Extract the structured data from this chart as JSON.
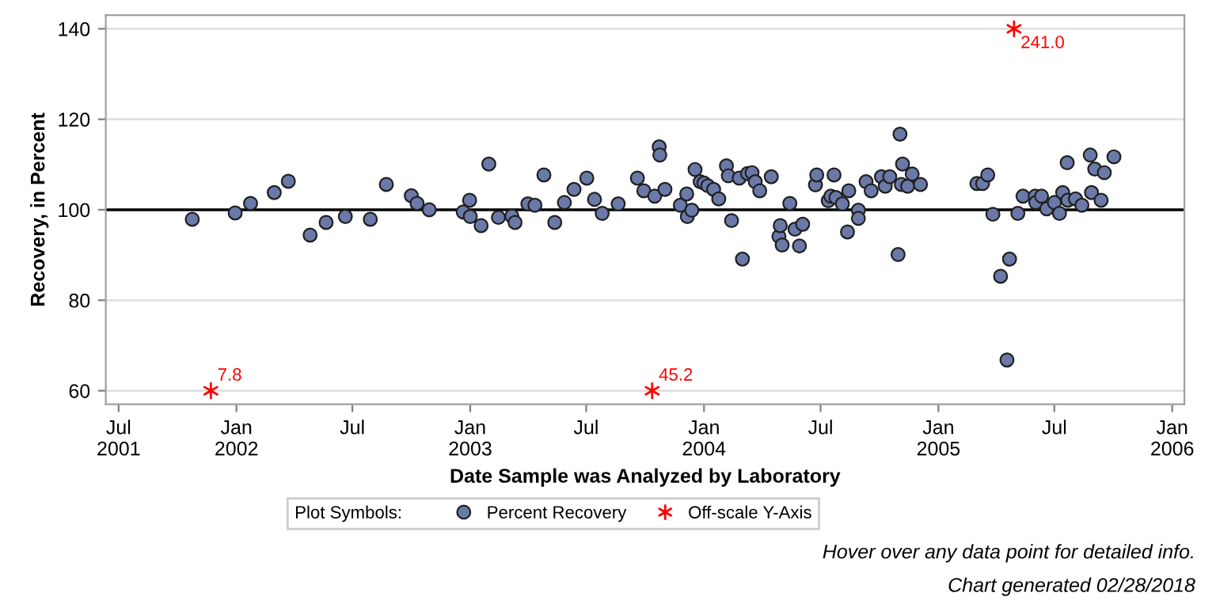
{
  "chart_data": {
    "type": "scatter",
    "xlabel": "Date Sample was Analyzed by Laboratory",
    "ylabel": "Recovery, in Percent",
    "xlim": [
      "2001-06-11",
      "2006-01-20"
    ],
    "ylim": [
      57,
      143
    ],
    "xticks": [
      {
        "value": "2001-07-01",
        "label": "Jul\n2001"
      },
      {
        "value": "2002-01-01",
        "label": "Jan\n2002"
      },
      {
        "value": "2002-07-01",
        "label": "Jul"
      },
      {
        "value": "2003-01-01",
        "label": "Jan\n2003"
      },
      {
        "value": "2003-07-01",
        "label": "Jul"
      },
      {
        "value": "2004-01-01",
        "label": "Jan\n2004"
      },
      {
        "value": "2004-07-01",
        "label": "Jul"
      },
      {
        "value": "2005-01-01",
        "label": "Jan\n2005"
      },
      {
        "value": "2005-07-01",
        "label": "Jul"
      },
      {
        "value": "2006-01-01",
        "label": "Jan\n2006"
      }
    ],
    "yticks": [
      60,
      80,
      100,
      120,
      140
    ],
    "grid": "y",
    "legend": "bottom",
    "legend_title": "Plot Symbols:",
    "ref_lines": [
      {
        "axis": "y",
        "value": 100,
        "color": "#000000"
      }
    ],
    "series": [
      {
        "name": "Percent Recovery",
        "color": "#6a79a8",
        "marker": "circle",
        "x": [
          "2001-10-24",
          "2001-12-30",
          "2002-01-23",
          "2002-03-01",
          "2002-03-23",
          "2002-04-26",
          "2002-05-21",
          "2002-06-20",
          "2002-07-29",
          "2002-08-23",
          "2002-10-01",
          "2002-10-10",
          "2002-10-29",
          "2002-12-21",
          "2002-12-31",
          "2003-01-01",
          "2003-01-18",
          "2003-01-30",
          "2003-02-14",
          "2003-03-07",
          "2003-03-12",
          "2003-04-01",
          "2003-04-12",
          "2003-04-26",
          "2003-05-13",
          "2003-05-28",
          "2003-06-12",
          "2003-07-02",
          "2003-07-14",
          "2003-07-26",
          "2003-08-20",
          "2003-09-19",
          "2003-09-29",
          "2003-10-16",
          "2003-10-23",
          "2003-10-24",
          "2003-11-01",
          "2003-11-25",
          "2003-12-05",
          "2003-12-06",
          "2003-12-13",
          "2003-12-18",
          "2003-12-26",
          "2004-01-01",
          "2004-01-07",
          "2004-01-16",
          "2004-01-24",
          "2004-02-05",
          "2004-02-08",
          "2004-02-13",
          "2004-02-25",
          "2004-03-01",
          "2004-03-09",
          "2004-03-16",
          "2004-03-21",
          "2004-03-28",
          "2004-04-15",
          "2004-04-27",
          "2004-04-29",
          "2004-05-02",
          "2004-05-14",
          "2004-05-22",
          "2004-05-29",
          "2004-06-03",
          "2004-06-23",
          "2004-06-25",
          "2004-07-13",
          "2004-07-17",
          "2004-07-22",
          "2004-07-25",
          "2004-08-04",
          "2004-08-12",
          "2004-08-14",
          "2004-08-29",
          "2004-08-29",
          "2004-09-10",
          "2004-09-18",
          "2004-10-04",
          "2004-10-10",
          "2004-10-17",
          "2004-10-30",
          "2004-11-02",
          "2004-11-04",
          "2004-11-06",
          "2004-11-14",
          "2004-11-21",
          "2004-12-04",
          "2005-03-02",
          "2005-03-11",
          "2005-03-19",
          "2005-03-27",
          "2005-04-08",
          "2005-04-18",
          "2005-04-22",
          "2005-05-05",
          "2005-05-13",
          "2005-06-01",
          "2005-06-02",
          "2005-06-11",
          "2005-06-19",
          "2005-07-01",
          "2005-07-09",
          "2005-07-14",
          "2005-07-21",
          "2005-07-22",
          "2005-08-03",
          "2005-08-13",
          "2005-08-26",
          "2005-08-28",
          "2005-09-02",
          "2005-09-12",
          "2005-09-17",
          "2005-10-02"
        ],
        "values": [
          97.9,
          99.3,
          101.4,
          103.8,
          106.3,
          94.4,
          97.2,
          98.5,
          97.9,
          105.6,
          103.1,
          101.4,
          100.0,
          99.5,
          102.1,
          98.5,
          96.5,
          110.1,
          98.3,
          98.6,
          97.2,
          101.3,
          101.0,
          107.7,
          97.2,
          101.6,
          104.5,
          107.0,
          102.3,
          99.2,
          101.3,
          107.0,
          104.2,
          103.0,
          113.9,
          112.1,
          104.5,
          101.0,
          103.5,
          98.5,
          99.9,
          108.9,
          106.2,
          105.9,
          105.3,
          104.5,
          102.4,
          109.7,
          107.5,
          97.6,
          107.0,
          89.1,
          108.0,
          108.2,
          106.2,
          104.2,
          107.3,
          94.1,
          96.5,
          92.2,
          101.4,
          95.7,
          92.0,
          96.8,
          105.5,
          107.7,
          102.0,
          103.0,
          107.7,
          102.7,
          101.3,
          95.1,
          104.2,
          99.9,
          98.1,
          106.2,
          104.2,
          107.3,
          105.2,
          107.3,
          90.1,
          116.7,
          105.6,
          110.1,
          105.2,
          107.9,
          105.6,
          105.8,
          105.8,
          107.7,
          99.0,
          85.3,
          66.8,
          89.1,
          99.2,
          103.0,
          103.0,
          101.6,
          103.0,
          100.2,
          101.6,
          99.2,
          103.8,
          110.4,
          102.1,
          102.4,
          101.0,
          112.1,
          103.8,
          109.0,
          102.1,
          108.2,
          111.7
        ]
      },
      {
        "name": "Off-scale Y-Axis",
        "color": "#ff0000",
        "marker": "cross",
        "x": [
          "2001-11-22",
          "2003-10-12",
          "2005-04-29"
        ],
        "values": [
          60,
          60,
          140
        ]
      }
    ],
    "annotations": [
      {
        "text": "7.8",
        "x": "2001-11-22",
        "y": 60
      },
      {
        "text": "45.2",
        "x": "2003-10-12",
        "y": 60
      },
      {
        "text": "241.0",
        "x": "2005-04-29",
        "y": 140
      },
      "Hover over any data point for detailed info.",
      "Chart generated 02/28/2018"
    ]
  }
}
